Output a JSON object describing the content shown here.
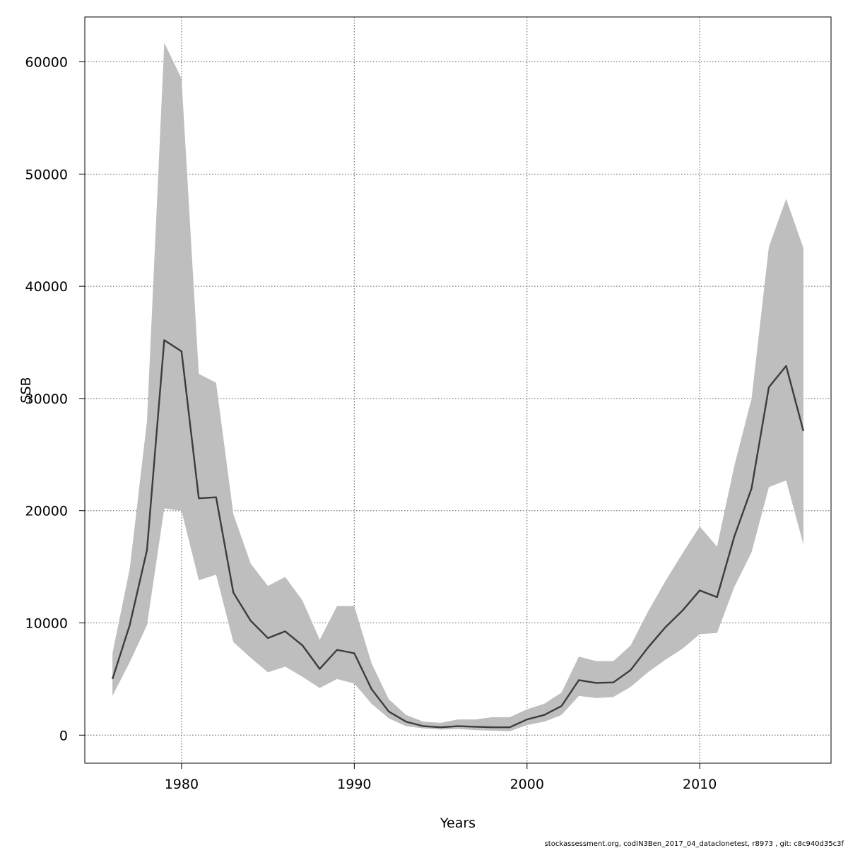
{
  "chart_data": {
    "type": "area",
    "xlabel": "Years",
    "ylabel": "SSB",
    "xlim": [
      1974.4,
      2017.6
    ],
    "ylim": [
      -2500,
      64000
    ],
    "x_ticks": [
      1980,
      1990,
      2000,
      2010
    ],
    "y_ticks": [
      0,
      10000,
      20000,
      30000,
      40000,
      50000,
      60000
    ],
    "grid": true,
    "x": [
      1976,
      1977,
      1978,
      1979,
      1980,
      1981,
      1982,
      1983,
      1984,
      1985,
      1986,
      1987,
      1988,
      1989,
      1990,
      1991,
      1992,
      1993,
      1994,
      1995,
      1996,
      1997,
      1998,
      1999,
      2000,
      2001,
      2002,
      2003,
      2004,
      2005,
      2006,
      2007,
      2008,
      2009,
      2010,
      2011,
      2012,
      2013,
      2014,
      2015,
      2016
    ],
    "series": [
      {
        "values": [
          5000,
          9800,
          16500,
          35200,
          34200,
          21100,
          21200,
          12700,
          10200,
          8650,
          9250,
          8000,
          5900,
          7600,
          7300,
          4100,
          2100,
          1200,
          800,
          700,
          800,
          750,
          700,
          700,
          1400,
          1800,
          2600,
          4900,
          4650,
          4700,
          5800,
          7800,
          9600,
          11100,
          12900,
          12300,
          17700,
          22000,
          31000,
          32900,
          27100
        ],
        "lower": [
          3500,
          6500,
          9800,
          20200,
          20000,
          13800,
          14300,
          8300,
          6900,
          5600,
          6100,
          5200,
          4200,
          5000,
          4600,
          2800,
          1500,
          800,
          600,
          500,
          550,
          450,
          400,
          350,
          900,
          1200,
          1800,
          3500,
          3300,
          3400,
          4300,
          5600,
          6700,
          7700,
          9000,
          9100,
          13200,
          16300,
          22100,
          22700,
          17000
        ],
        "upper": [
          7300,
          14800,
          28000,
          61700,
          58500,
          32200,
          31400,
          19700,
          15300,
          13300,
          14100,
          12000,
          8500,
          11500,
          11500,
          6400,
          3200,
          1800,
          1200,
          1100,
          1400,
          1400,
          1600,
          1600,
          2300,
          2800,
          3800,
          7000,
          6600,
          6600,
          8000,
          11000,
          13700,
          16200,
          18600,
          16800,
          24000,
          30000,
          43500,
          47800,
          43400
        ]
      }
    ],
    "colors": {
      "band": "#bebebe",
      "line": "#3c3c3c",
      "grid": "#555555",
      "axis": "#000000"
    },
    "footer": "stockassessment.org, codIN3Ben_2017_04_dataclonetest, r8973 , git: c8c940d35c3f"
  }
}
